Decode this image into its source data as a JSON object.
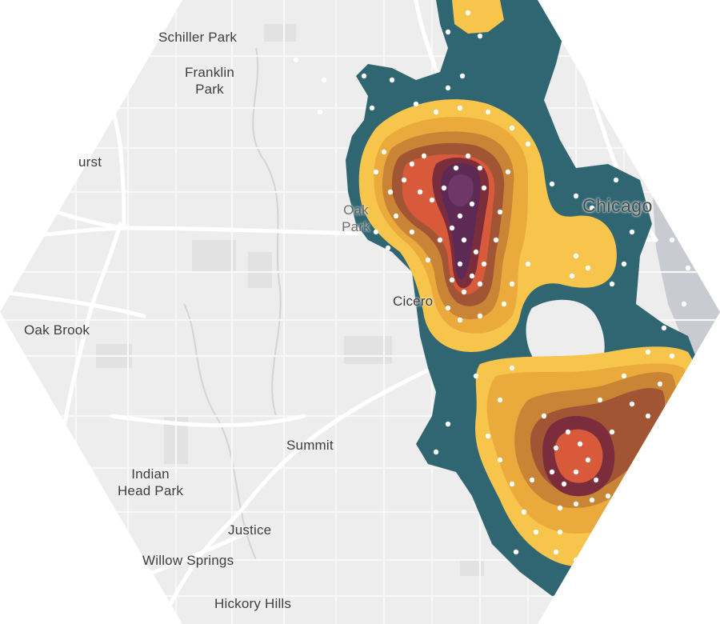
{
  "map": {
    "places": {
      "schiller_park": "Schiller Park",
      "franklin_park": "Franklin\nPark",
      "hurst": "urst",
      "oak_park": "Oak\nPark",
      "chicago": "Chicago",
      "cicero": "Cicero",
      "oak_brook": "Oak Brook",
      "summit": "Summit",
      "indian_head_park": "Indian\nHead Park",
      "justice": "Justice",
      "willow_springs": "Willow Springs",
      "hickory_hills": "Hickory Hills"
    },
    "colors": {
      "land": "#ededed",
      "road": "#ffffff",
      "water": "#c9cbd2",
      "density_outer": "#2f6672",
      "density_2": "#f7c44c",
      "density_3": "#eaaa3c",
      "density_4": "#c98436",
      "density_5": "#a15535",
      "density_6": "#d95a3b",
      "density_7": "#7c2d3c",
      "density_peak": "#5c2a55",
      "points": "#ffffff"
    }
  }
}
